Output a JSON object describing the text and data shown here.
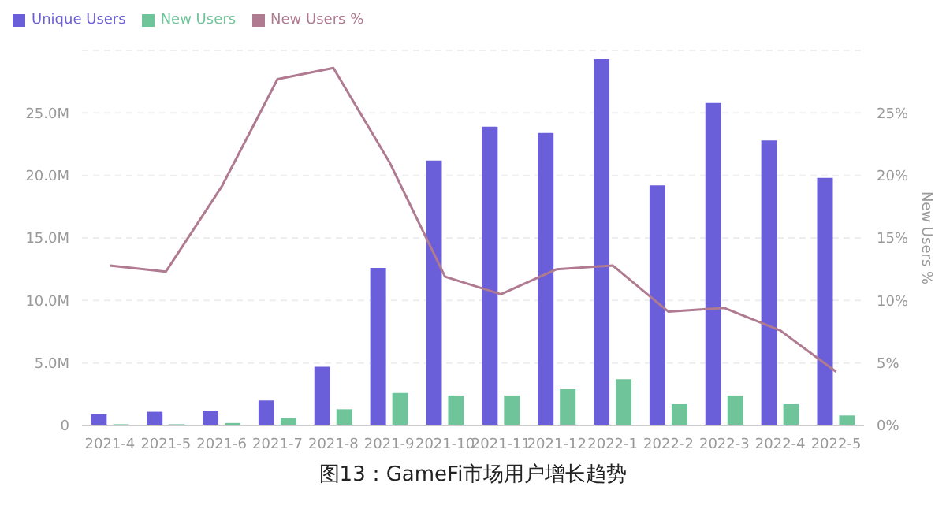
{
  "chart_data": {
    "type": "bar",
    "title": "图13：GameFi市场用户增长趋势",
    "y2label": "New Users %",
    "categories": [
      "2021-4",
      "2021-5",
      "2021-6",
      "2021-7",
      "2021-8",
      "2021-9",
      "2021-10",
      "2021-11",
      "2021-12",
      "2022-1",
      "2022-2",
      "2022-3",
      "2022-4",
      "2022-5"
    ],
    "series": [
      {
        "name": "Unique Users",
        "color": "#6a5fd8",
        "values": [
          900000,
          1100000,
          1200000,
          2000000,
          4700000,
          12600000,
          21200000,
          23900000,
          23400000,
          29300000,
          19200000,
          25800000,
          22800000,
          19800000
        ]
      },
      {
        "name": "New Users",
        "color": "#6fc49a",
        "values": [
          100000,
          100000,
          200000,
          600000,
          1300000,
          2600000,
          2400000,
          2400000,
          2900000,
          3700000,
          1700000,
          2400000,
          1700000,
          800000
        ]
      },
      {
        "name": "New Users %",
        "type": "line",
        "axis": "y2",
        "color": "#b07a90",
        "values": [
          12.8,
          12.3,
          19.1,
          27.7,
          28.6,
          21.1,
          11.9,
          10.5,
          12.5,
          12.8,
          9.1,
          9.4,
          7.6,
          4.3
        ]
      }
    ],
    "ylim": [
      0,
      30000000
    ],
    "yticks": [
      0,
      {
        "value": 5000000,
        "label": "5.0M"
      },
      {
        "value": 10000000,
        "label": "10.0M"
      },
      {
        "value": 15000000,
        "label": "15.0M"
      },
      {
        "value": 20000000,
        "label": "20.0M"
      },
      {
        "value": 25000000,
        "label": "25.0M"
      }
    ],
    "y2lim": [
      0,
      30
    ],
    "y2ticks": [
      {
        "value": 0,
        "label": "0%"
      },
      {
        "value": 5,
        "label": "5%"
      },
      {
        "value": 10,
        "label": "10%"
      },
      {
        "value": 15,
        "label": "15%"
      },
      {
        "value": 20,
        "label": "20%"
      },
      {
        "value": 25,
        "label": "25%"
      }
    ],
    "grid": "y",
    "legend": "top left",
    "marker": "none",
    "line_style": "solid"
  }
}
